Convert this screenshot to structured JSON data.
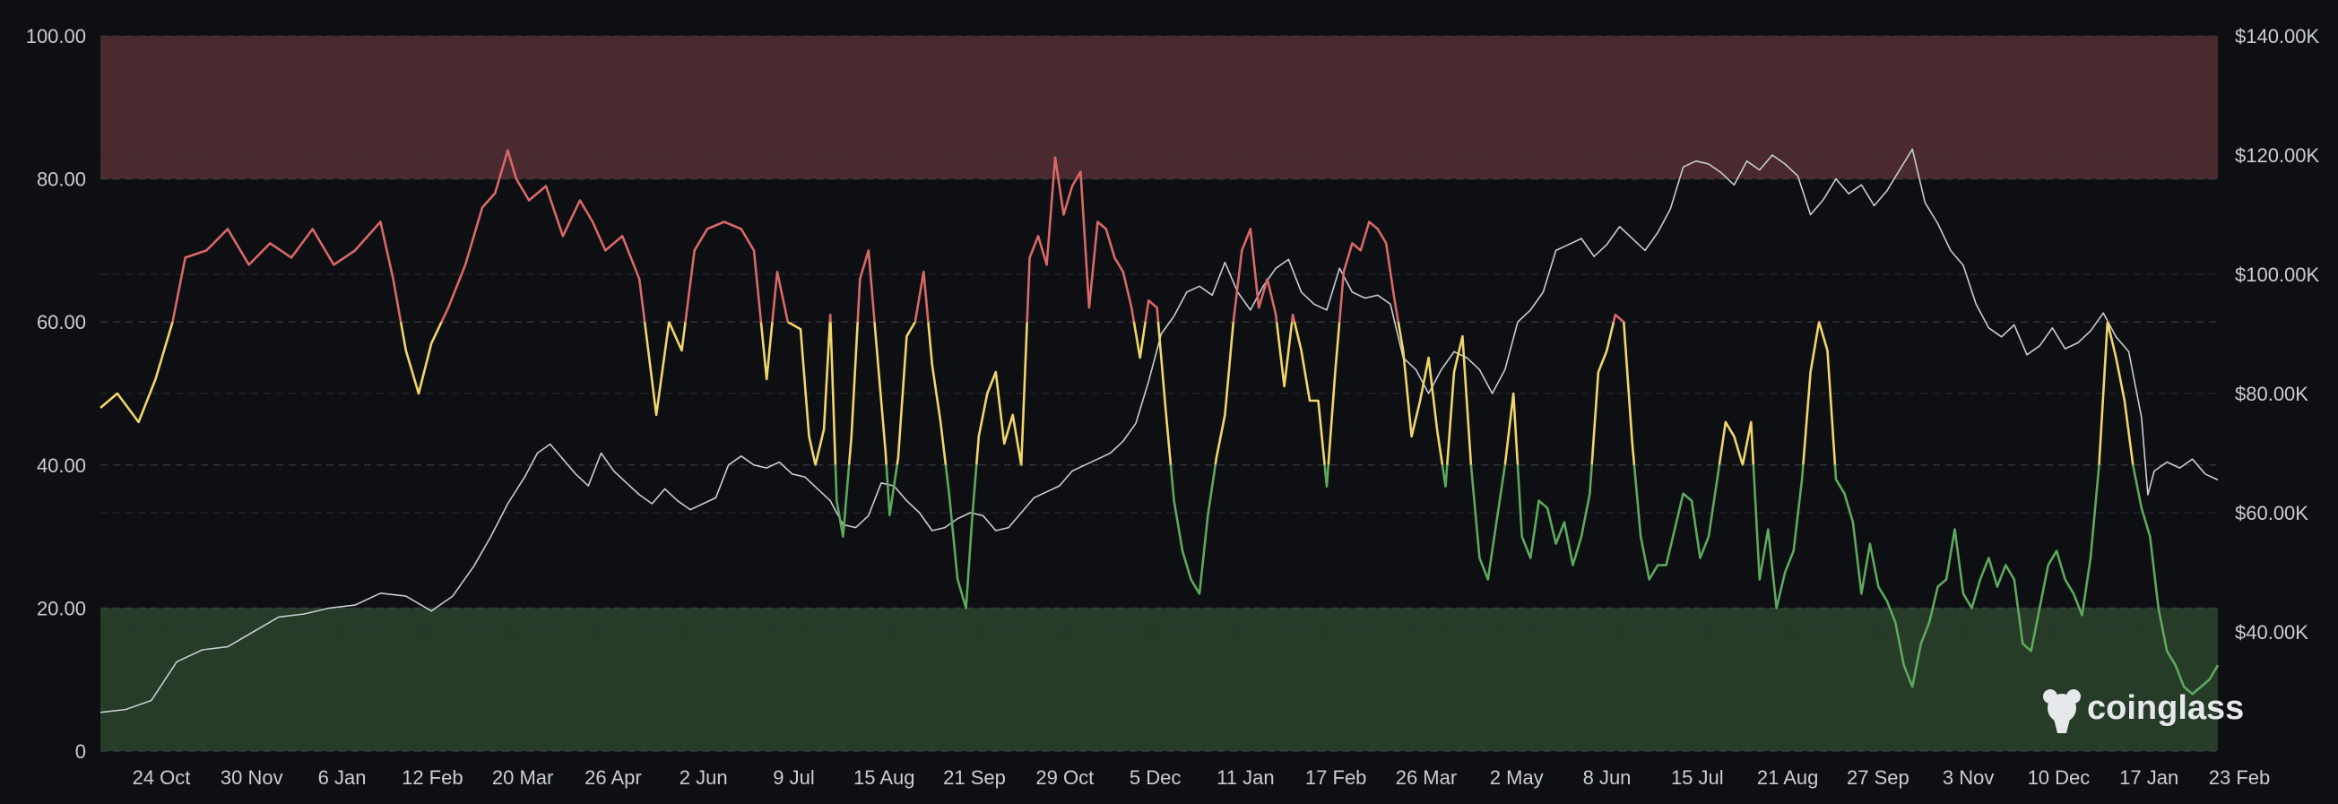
{
  "chart_data": {
    "type": "line",
    "x_tick_labels": [
      "24 Oct",
      "30 Nov",
      "6 Jan",
      "12 Feb",
      "20 Mar",
      "26 Apr",
      "2 Jun",
      "9 Jul",
      "15 Aug",
      "21 Sep",
      "29 Oct",
      "5 Dec",
      "11 Jan",
      "17 Feb",
      "26 Mar",
      "2 May",
      "8 Jun",
      "15 Jul",
      "21 Aug",
      "27 Sep",
      "3 Nov",
      "10 Dec",
      "17 Jan",
      "23 Feb"
    ],
    "y_left": {
      "range": [
        0,
        100
      ],
      "tick_labels": [
        "100.00",
        "80.00",
        "60.00",
        "40.00",
        "20.00",
        "0"
      ]
    },
    "y_right": {
      "range": [
        20000,
        140000
      ],
      "tick_labels": [
        "$140.00K",
        "$120.00K",
        "$100.00K",
        "$80.00K",
        "$60.00K",
        "$40.00K"
      ]
    },
    "zones": [
      {
        "from": 80,
        "to": 100,
        "color": "#4a2a2e"
      },
      {
        "from": 0,
        "to": 20,
        "color": "#263b28"
      }
    ],
    "color_bands": [
      {
        "min": 60,
        "max": 100,
        "color": "#d96868"
      },
      {
        "min": 40,
        "max": 60,
        "color": "#f0d66a"
      },
      {
        "min": 0,
        "max": 40,
        "color": "#5ea85e"
      }
    ],
    "index_series": [
      [
        0,
        48
      ],
      [
        0.4,
        50
      ],
      [
        0.9,
        46
      ],
      [
        1.3,
        52
      ],
      [
        1.7,
        60
      ],
      [
        2.0,
        69
      ],
      [
        2.5,
        70
      ],
      [
        3.0,
        73
      ],
      [
        3.5,
        68
      ],
      [
        4.0,
        71
      ],
      [
        4.5,
        69
      ],
      [
        5.0,
        73
      ],
      [
        5.5,
        68
      ],
      [
        6.0,
        70
      ],
      [
        6.6,
        74
      ],
      [
        6.9,
        66
      ],
      [
        7.2,
        56
      ],
      [
        7.5,
        50
      ],
      [
        7.8,
        57
      ],
      [
        8.2,
        62
      ],
      [
        8.6,
        68
      ],
      [
        9.0,
        76
      ],
      [
        9.3,
        78
      ],
      [
        9.6,
        84
      ],
      [
        9.8,
        80
      ],
      [
        10.1,
        77
      ],
      [
        10.5,
        79
      ],
      [
        10.9,
        72
      ],
      [
        11.3,
        77
      ],
      [
        11.6,
        74
      ],
      [
        11.9,
        70
      ],
      [
        12.3,
        72
      ],
      [
        12.7,
        66
      ],
      [
        13.1,
        47
      ],
      [
        13.4,
        60
      ],
      [
        13.7,
        56
      ],
      [
        14.0,
        70
      ],
      [
        14.3,
        73
      ],
      [
        14.7,
        74
      ],
      [
        15.1,
        73
      ],
      [
        15.4,
        70
      ],
      [
        15.7,
        52
      ],
      [
        15.95,
        67
      ],
      [
        16.2,
        60
      ],
      [
        16.5,
        59
      ],
      [
        16.7,
        44
      ],
      [
        16.85,
        40
      ],
      [
        17.05,
        45
      ],
      [
        17.2,
        61
      ],
      [
        17.35,
        35
      ],
      [
        17.5,
        30
      ],
      [
        17.7,
        44
      ],
      [
        17.9,
        66
      ],
      [
        18.1,
        70
      ],
      [
        18.3,
        56
      ],
      [
        18.5,
        42
      ],
      [
        18.6,
        33
      ],
      [
        18.8,
        41
      ],
      [
        19.0,
        58
      ],
      [
        19.2,
        60
      ],
      [
        19.4,
        67
      ],
      [
        19.6,
        54
      ],
      [
        19.8,
        46
      ],
      [
        20.0,
        36
      ],
      [
        20.2,
        24
      ],
      [
        20.4,
        20
      ],
      [
        20.55,
        33
      ],
      [
        20.7,
        44
      ],
      [
        20.9,
        50
      ],
      [
        21.1,
        53
      ],
      [
        21.3,
        43
      ],
      [
        21.5,
        47
      ],
      [
        21.7,
        40
      ],
      [
        21.9,
        69
      ],
      [
        22.1,
        72
      ],
      [
        22.3,
        68
      ],
      [
        22.5,
        83
      ],
      [
        22.7,
        75
      ],
      [
        22.9,
        79
      ],
      [
        23.1,
        81
      ],
      [
        23.3,
        62
      ],
      [
        23.5,
        74
      ],
      [
        23.7,
        73
      ],
      [
        23.9,
        69
      ],
      [
        24.1,
        67
      ],
      [
        24.3,
        62
      ],
      [
        24.5,
        55
      ],
      [
        24.7,
        63
      ],
      [
        24.9,
        62
      ],
      [
        25.1,
        48
      ],
      [
        25.3,
        35
      ],
      [
        25.5,
        28
      ],
      [
        25.7,
        24
      ],
      [
        25.9,
        22
      ],
      [
        26.1,
        33
      ],
      [
        26.3,
        41
      ],
      [
        26.5,
        47
      ],
      [
        26.7,
        60
      ],
      [
        26.9,
        70
      ],
      [
        27.1,
        73
      ],
      [
        27.3,
        62
      ],
      [
        27.5,
        66
      ],
      [
        27.7,
        61
      ],
      [
        27.9,
        51
      ],
      [
        28.1,
        61
      ],
      [
        28.3,
        56
      ],
      [
        28.5,
        49
      ],
      [
        28.7,
        49
      ],
      [
        28.9,
        37
      ],
      [
        29.1,
        53
      ],
      [
        29.3,
        67
      ],
      [
        29.5,
        71
      ],
      [
        29.7,
        70
      ],
      [
        29.9,
        74
      ],
      [
        30.1,
        73
      ],
      [
        30.3,
        71
      ],
      [
        30.5,
        63
      ],
      [
        30.7,
        56
      ],
      [
        30.9,
        44
      ],
      [
        31.1,
        49
      ],
      [
        31.3,
        55
      ],
      [
        31.5,
        45
      ],
      [
        31.7,
        37
      ],
      [
        31.9,
        53
      ],
      [
        32.1,
        58
      ],
      [
        32.3,
        40
      ],
      [
        32.5,
        27
      ],
      [
        32.7,
        24
      ],
      [
        32.9,
        32
      ],
      [
        33.1,
        40
      ],
      [
        33.3,
        50
      ],
      [
        33.5,
        30
      ],
      [
        33.7,
        27
      ],
      [
        33.9,
        35
      ],
      [
        34.1,
        34
      ],
      [
        34.3,
        29
      ],
      [
        34.5,
        32
      ],
      [
        34.7,
        26
      ],
      [
        34.9,
        30
      ],
      [
        35.1,
        36
      ],
      [
        35.3,
        53
      ],
      [
        35.5,
        56
      ],
      [
        35.7,
        61
      ],
      [
        35.9,
        60
      ],
      [
        36.1,
        43
      ],
      [
        36.3,
        30
      ],
      [
        36.5,
        24
      ],
      [
        36.7,
        26
      ],
      [
        36.9,
        26
      ],
      [
        37.1,
        31
      ],
      [
        37.3,
        36
      ],
      [
        37.5,
        35
      ],
      [
        37.7,
        27
      ],
      [
        37.9,
        30
      ],
      [
        38.1,
        38
      ],
      [
        38.3,
        46
      ],
      [
        38.5,
        44
      ],
      [
        38.7,
        40
      ],
      [
        38.9,
        46
      ],
      [
        39.1,
        24
      ],
      [
        39.3,
        31
      ],
      [
        39.5,
        20
      ],
      [
        39.7,
        25
      ],
      [
        39.9,
        28
      ],
      [
        40.1,
        38
      ],
      [
        40.3,
        53
      ],
      [
        40.5,
        60
      ],
      [
        40.7,
        56
      ],
      [
        40.9,
        38
      ],
      [
        41.1,
        36
      ],
      [
        41.3,
        32
      ],
      [
        41.5,
        22
      ],
      [
        41.7,
        29
      ],
      [
        41.9,
        23
      ],
      [
        42.1,
        21
      ],
      [
        42.3,
        18
      ],
      [
        42.5,
        12
      ],
      [
        42.7,
        9
      ],
      [
        42.9,
        15
      ],
      [
        43.1,
        18
      ],
      [
        43.3,
        23
      ],
      [
        43.5,
        24
      ],
      [
        43.7,
        31
      ],
      [
        43.9,
        22
      ],
      [
        44.1,
        20
      ],
      [
        44.3,
        24
      ],
      [
        44.5,
        27
      ],
      [
        44.7,
        23
      ],
      [
        44.9,
        26
      ],
      [
        45.1,
        24
      ],
      [
        45.3,
        15
      ],
      [
        45.5,
        14
      ],
      [
        45.7,
        20
      ],
      [
        45.9,
        26
      ],
      [
        46.1,
        28
      ],
      [
        46.3,
        24
      ],
      [
        46.5,
        22
      ],
      [
        46.7,
        19
      ],
      [
        46.9,
        27
      ],
      [
        47.1,
        40
      ],
      [
        47.3,
        60
      ],
      [
        47.5,
        55
      ],
      [
        47.7,
        49
      ],
      [
        47.9,
        40
      ],
      [
        48.1,
        34
      ],
      [
        48.3,
        30
      ],
      [
        48.5,
        20
      ],
      [
        48.7,
        14
      ],
      [
        48.9,
        12
      ],
      [
        49.1,
        9
      ],
      [
        49.3,
        8
      ],
      [
        49.5,
        9
      ],
      [
        49.7,
        10
      ],
      [
        49.9,
        12
      ]
    ],
    "price_series": [
      [
        0,
        26500
      ],
      [
        0.6,
        27000
      ],
      [
        1.2,
        28500
      ],
      [
        1.8,
        35000
      ],
      [
        2.4,
        37000
      ],
      [
        3.0,
        37500
      ],
      [
        3.6,
        40000
      ],
      [
        4.2,
        42500
      ],
      [
        4.8,
        43000
      ],
      [
        5.4,
        44000
      ],
      [
        6.0,
        44500
      ],
      [
        6.6,
        46500
      ],
      [
        7.2,
        46000
      ],
      [
        7.8,
        43500
      ],
      [
        8.3,
        46000
      ],
      [
        8.8,
        51000
      ],
      [
        9.2,
        56000
      ],
      [
        9.6,
        61500
      ],
      [
        10.0,
        66000
      ],
      [
        10.3,
        70000
      ],
      [
        10.6,
        71500
      ],
      [
        10.9,
        69000
      ],
      [
        11.2,
        66500
      ],
      [
        11.5,
        64500
      ],
      [
        11.8,
        70000
      ],
      [
        12.1,
        67000
      ],
      [
        12.4,
        65000
      ],
      [
        12.7,
        63000
      ],
      [
        13.0,
        61500
      ],
      [
        13.3,
        64000
      ],
      [
        13.6,
        62000
      ],
      [
        13.9,
        60500
      ],
      [
        14.2,
        61500
      ],
      [
        14.5,
        62500
      ],
      [
        14.8,
        68000
      ],
      [
        15.1,
        69500
      ],
      [
        15.4,
        68000
      ],
      [
        15.7,
        67500
      ],
      [
        16.0,
        68500
      ],
      [
        16.3,
        66500
      ],
      [
        16.6,
        66000
      ],
      [
        16.9,
        64000
      ],
      [
        17.2,
        62000
      ],
      [
        17.5,
        58000
      ],
      [
        17.8,
        57500
      ],
      [
        18.1,
        59500
      ],
      [
        18.4,
        65000
      ],
      [
        18.7,
        64500
      ],
      [
        19.0,
        62000
      ],
      [
        19.3,
        60000
      ],
      [
        19.6,
        57000
      ],
      [
        19.9,
        57500
      ],
      [
        20.2,
        59000
      ],
      [
        20.5,
        60000
      ],
      [
        20.8,
        59500
      ],
      [
        21.1,
        57000
      ],
      [
        21.4,
        57500
      ],
      [
        21.7,
        60000
      ],
      [
        22.0,
        62500
      ],
      [
        22.3,
        63500
      ],
      [
        22.6,
        64500
      ],
      [
        22.9,
        67000
      ],
      [
        23.2,
        68000
      ],
      [
        23.5,
        69000
      ],
      [
        23.8,
        70000
      ],
      [
        24.1,
        72000
      ],
      [
        24.4,
        75000
      ],
      [
        24.7,
        82000
      ],
      [
        25.0,
        90000
      ],
      [
        25.3,
        93000
      ],
      [
        25.6,
        97000
      ],
      [
        25.9,
        98000
      ],
      [
        26.2,
        96500
      ],
      [
        26.5,
        102000
      ],
      [
        26.8,
        97000
      ],
      [
        27.1,
        94000
      ],
      [
        27.4,
        98000
      ],
      [
        27.7,
        101000
      ],
      [
        28.0,
        102500
      ],
      [
        28.3,
        97000
      ],
      [
        28.6,
        95000
      ],
      [
        28.9,
        94000
      ],
      [
        29.2,
        101000
      ],
      [
        29.5,
        97000
      ],
      [
        29.8,
        96000
      ],
      [
        30.1,
        96500
      ],
      [
        30.4,
        95000
      ],
      [
        30.7,
        86000
      ],
      [
        31.0,
        84000
      ],
      [
        31.3,
        80000
      ],
      [
        31.6,
        84000
      ],
      [
        31.9,
        87000
      ],
      [
        32.2,
        86000
      ],
      [
        32.5,
        84000
      ],
      [
        32.8,
        80000
      ],
      [
        33.1,
        84000
      ],
      [
        33.4,
        92000
      ],
      [
        33.7,
        94000
      ],
      [
        34.0,
        97000
      ],
      [
        34.3,
        104000
      ],
      [
        34.6,
        105000
      ],
      [
        34.9,
        106000
      ],
      [
        35.2,
        103000
      ],
      [
        35.5,
        105000
      ],
      [
        35.8,
        108000
      ],
      [
        36.1,
        106000
      ],
      [
        36.4,
        104000
      ],
      [
        36.7,
        107000
      ],
      [
        37.0,
        111000
      ],
      [
        37.3,
        118000
      ],
      [
        37.6,
        119000
      ],
      [
        37.9,
        118500
      ],
      [
        38.2,
        117000
      ],
      [
        38.5,
        115000
      ],
      [
        38.8,
        119000
      ],
      [
        39.1,
        117500
      ],
      [
        39.4,
        120000
      ],
      [
        39.7,
        118500
      ],
      [
        40.0,
        116500
      ],
      [
        40.3,
        110000
      ],
      [
        40.6,
        112500
      ],
      [
        40.9,
        116000
      ],
      [
        41.2,
        113500
      ],
      [
        41.5,
        115000
      ],
      [
        41.8,
        111500
      ],
      [
        42.1,
        114000
      ],
      [
        42.4,
        117500
      ],
      [
        42.7,
        121000
      ],
      [
        43.0,
        112000
      ],
      [
        43.3,
        108500
      ],
      [
        43.6,
        104000
      ],
      [
        43.9,
        101500
      ],
      [
        44.2,
        95000
      ],
      [
        44.5,
        91000
      ],
      [
        44.8,
        89500
      ],
      [
        45.1,
        91500
      ],
      [
        45.4,
        86500
      ],
      [
        45.7,
        88000
      ],
      [
        46.0,
        91000
      ],
      [
        46.3,
        87500
      ],
      [
        46.6,
        88500
      ],
      [
        46.9,
        90500
      ],
      [
        47.2,
        93500
      ],
      [
        47.5,
        89500
      ],
      [
        47.8,
        87000
      ],
      [
        48.1,
        76000
      ],
      [
        48.25,
        63000
      ],
      [
        48.4,
        67000
      ],
      [
        48.7,
        68500
      ],
      [
        49.0,
        67500
      ],
      [
        49.3,
        69000
      ],
      [
        49.6,
        66500
      ],
      [
        49.9,
        65500
      ]
    ]
  },
  "watermark": {
    "text": "coinglass",
    "icon": "coinglass-logo-icon"
  }
}
